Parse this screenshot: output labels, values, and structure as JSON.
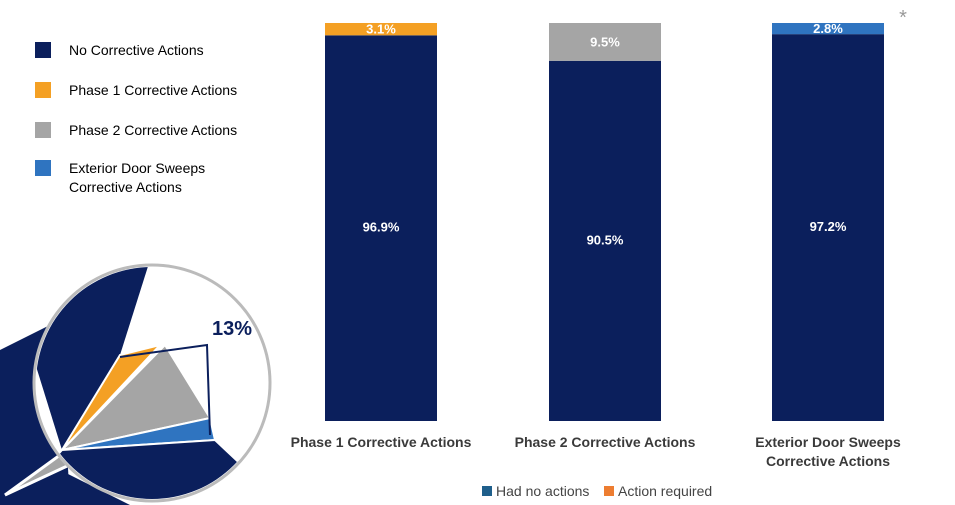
{
  "chart_data": {
    "type": "bar",
    "stacked": true,
    "categories": [
      "Phase 1 Corrective Actions",
      "Phase 2 Corrective Actions",
      "Exterior Door Sweeps Corrective Actions"
    ],
    "series": [
      {
        "name": "No Corrective Actions",
        "color": "#0b1f5c",
        "values": [
          96.9,
          90.5,
          97.2
        ],
        "value_labels": [
          "96.9%",
          "90.5%",
          "97.2%"
        ]
      },
      {
        "name": "Phase 1 Corrective Actions",
        "color": "#f4a024",
        "values": [
          3.1,
          null,
          null
        ],
        "value_labels": [
          "3.1%",
          null,
          null
        ]
      },
      {
        "name": "Phase 2 Corrective Actions",
        "color": "#a5a5a5",
        "values": [
          null,
          9.5,
          null
        ],
        "value_labels": [
          null,
          "9.5%",
          null
        ]
      },
      {
        "name": "Exterior Door Sweeps Corrective Actions",
        "color": "#2f74c0",
        "values": [
          null,
          null,
          2.8
        ],
        "value_labels": [
          null,
          null,
          "2.8%"
        ]
      }
    ],
    "ylim": [
      0,
      100
    ],
    "bottom_legend": [
      {
        "name": "Had no actions",
        "color": "#1f5f8b"
      },
      {
        "name": "Action required",
        "color": "#ed7d31"
      }
    ],
    "annotations": [
      "13%",
      "*"
    ]
  }
}
